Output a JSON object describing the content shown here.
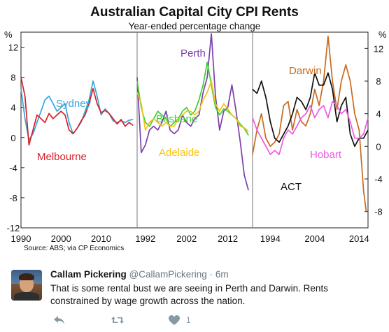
{
  "chart_data": {
    "type": "line",
    "title": "Australian Capital City CPI Rents",
    "subtitle": "Year-ended percentage change",
    "source": "Source: ABS; via CP Economics",
    "ylabel_left": "%",
    "ylabel_right": "%",
    "yticks_left": [
      "12",
      "8",
      "4",
      "0",
      "-4",
      "-8",
      "-12"
    ],
    "yticks_right": [
      "12",
      "8",
      "4",
      "0",
      "-4",
      "-8"
    ],
    "colors": {
      "Sydney": "#35a7db",
      "Melbourne": "#d6212a",
      "Perth": "#7d3fa8",
      "Brisbane": "#39d12f",
      "Adelaide": "#f5c313",
      "Darwin": "#c86a1e",
      "ACT": "#111111",
      "Hobart": "#ef59e6"
    },
    "panels": [
      {
        "xticks": [
          "1990",
          "2000",
          "2010"
        ],
        "xlim": [
          1990,
          2019
        ],
        "ylim": [
          -12,
          14
        ],
        "series": [
          {
            "name": "Sydney",
            "label": "Sydney",
            "data": [
              [
                1990,
                6.5
              ],
              [
                1991,
                2.5
              ],
              [
                1992,
                -0.3
              ],
              [
                1993,
                0.5
              ],
              [
                1994,
                2
              ],
              [
                1995,
                3.5
              ],
              [
                1996,
                5
              ],
              [
                1997,
                5.5
              ],
              [
                1998,
                4.5
              ],
              [
                1999,
                3.5
              ],
              [
                2000,
                4
              ],
              [
                2001,
                4.5
              ],
              [
                2002,
                2
              ],
              [
                2003,
                0.5
              ],
              [
                2004,
                1.2
              ],
              [
                2005,
                2
              ],
              [
                2006,
                3.5
              ],
              [
                2007,
                5
              ],
              [
                2008,
                7.5
              ],
              [
                2009,
                5.5
              ],
              [
                2010,
                3
              ],
              [
                2011,
                3.8
              ],
              [
                2012,
                3.2
              ],
              [
                2013,
                2.2
              ],
              [
                2014,
                2
              ],
              [
                2015,
                2.2
              ],
              [
                2016,
                2
              ],
              [
                2017,
                2.3
              ],
              [
                2018,
                2.4
              ]
            ]
          },
          {
            "name": "Melbourne",
            "label": "Melbourne",
            "data": [
              [
                1990,
                8
              ],
              [
                1991,
                5.5
              ],
              [
                1992,
                -1
              ],
              [
                1993,
                1
              ],
              [
                1994,
                3
              ],
              [
                1995,
                2.5
              ],
              [
                1996,
                2
              ],
              [
                1997,
                3.2
              ],
              [
                1998,
                2.5
              ],
              [
                1999,
                3
              ],
              [
                2000,
                3.5
              ],
              [
                2001,
                3
              ],
              [
                2002,
                1
              ],
              [
                2003,
                0.5
              ],
              [
                2004,
                1.2
              ],
              [
                2005,
                2.2
              ],
              [
                2006,
                3
              ],
              [
                2007,
                4.5
              ],
              [
                2008,
                6.5
              ],
              [
                2009,
                4.5
              ],
              [
                2010,
                3.3
              ],
              [
                2011,
                3.6
              ],
              [
                2012,
                3.2
              ],
              [
                2013,
                2.5
              ],
              [
                2014,
                1.8
              ],
              [
                2015,
                2.4
              ],
              [
                2016,
                1.5
              ],
              [
                2017,
                2
              ],
              [
                2018,
                1.6
              ]
            ]
          }
        ]
      },
      {
        "xticks": [
          "1992",
          "2002",
          "2012"
        ],
        "xlim": [
          1990,
          2018
        ],
        "ylim": [
          -12,
          14
        ],
        "series": [
          {
            "name": "Perth",
            "label": "Perth",
            "data": [
              [
                1990,
                8
              ],
              [
                1991,
                -2
              ],
              [
                1992,
                -1
              ],
              [
                1993,
                1
              ],
              [
                1994,
                1.5
              ],
              [
                1995,
                1
              ],
              [
                1996,
                2
              ],
              [
                1997,
                3.5
              ],
              [
                1998,
                1
              ],
              [
                1999,
                0.5
              ],
              [
                2000,
                1
              ],
              [
                2001,
                3
              ],
              [
                2002,
                2
              ],
              [
                2003,
                1.5
              ],
              [
                2004,
                2.5
              ],
              [
                2005,
                3
              ],
              [
                2006,
                6
              ],
              [
                2007,
                8
              ],
              [
                2008,
                13.8
              ],
              [
                2009,
                5.5
              ],
              [
                2010,
                1
              ],
              [
                2011,
                3.5
              ],
              [
                2012,
                4
              ],
              [
                2013,
                7
              ],
              [
                2014,
                3.5
              ],
              [
                2015,
                -0.5
              ],
              [
                2016,
                -5
              ],
              [
                2017,
                -7
              ]
            ]
          },
          {
            "name": "Brisbane",
            "label": "Brisbane",
            "data": [
              [
                1990,
                7.5
              ],
              [
                1991,
                4
              ],
              [
                1992,
                2
              ],
              [
                1993,
                1.5
              ],
              [
                1994,
                2.5
              ],
              [
                1995,
                3.5
              ],
              [
                1996,
                3
              ],
              [
                1997,
                2.5
              ],
              [
                1998,
                1.5
              ],
              [
                1999,
                2
              ],
              [
                2000,
                2.5
              ],
              [
                2001,
                3.5
              ],
              [
                2002,
                4
              ],
              [
                2003,
                3
              ],
              [
                2004,
                3.5
              ],
              [
                2005,
                5
              ],
              [
                2006,
                7
              ],
              [
                2007,
                10
              ],
              [
                2008,
                7
              ],
              [
                2009,
                4
              ],
              [
                2010,
                3
              ],
              [
                2011,
                3.8
              ],
              [
                2012,
                3.5
              ],
              [
                2013,
                3
              ],
              [
                2014,
                2.5
              ],
              [
                2015,
                1.8
              ],
              [
                2016,
                1.2
              ],
              [
                2017,
                0.3
              ]
            ]
          },
          {
            "name": "Adelaide",
            "label": "Adelaide",
            "data": [
              [
                1990,
                6
              ],
              [
                1991,
                4.5
              ],
              [
                1992,
                1
              ],
              [
                1993,
                2
              ],
              [
                1994,
                2.5
              ],
              [
                1995,
                2
              ],
              [
                1996,
                1.5
              ],
              [
                1997,
                2
              ],
              [
                1998,
                1.5
              ],
              [
                1999,
                1.5
              ],
              [
                2000,
                2.5
              ],
              [
                2001,
                3
              ],
              [
                2002,
                3.5
              ],
              [
                2003,
                3.5
              ],
              [
                2004,
                3
              ],
              [
                2005,
                3.5
              ],
              [
                2006,
                5
              ],
              [
                2007,
                6
              ],
              [
                2008,
                7.5
              ],
              [
                2009,
                4.5
              ],
              [
                2010,
                3.5
              ],
              [
                2011,
                4.5
              ],
              [
                2012,
                3.8
              ],
              [
                2013,
                3
              ],
              [
                2014,
                2.5
              ],
              [
                2015,
                1.5
              ],
              [
                2016,
                1.3
              ],
              [
                2017,
                0.8
              ]
            ]
          }
        ]
      },
      {
        "xticks": [
          "1994",
          "2004",
          "2014"
        ],
        "xlim": [
          1990,
          2016
        ],
        "ylim": [
          -10,
          14
        ],
        "series": [
          {
            "name": "Darwin",
            "label": "Darwin",
            "data": [
              [
                1990,
                -1
              ],
              [
                1991,
                2
              ],
              [
                1992,
                4
              ],
              [
                1993,
                1
              ],
              [
                1994,
                0
              ],
              [
                1995,
                0.5
              ],
              [
                1996,
                1.5
              ],
              [
                1997,
                5
              ],
              [
                1998,
                5.5
              ],
              [
                1999,
                2
              ],
              [
                2000,
                4.5
              ],
              [
                2001,
                3
              ],
              [
                2002,
                2.5
              ],
              [
                2003,
                4
              ],
              [
                2004,
                7
              ],
              [
                2005,
                5
              ],
              [
                2006,
                8
              ],
              [
                2007,
                13.5
              ],
              [
                2008,
                8
              ],
              [
                2009,
                4.5
              ],
              [
                2010,
                8
              ],
              [
                2011,
                10
              ],
              [
                2012,
                8
              ],
              [
                2013,
                4
              ],
              [
                2014,
                2
              ],
              [
                2015,
                -5.5
              ],
              [
                2015.6,
                -8
              ]
            ]
          },
          {
            "name": "ACT",
            "label": "ACT",
            "data": [
              [
                1990,
                7
              ],
              [
                1991,
                6.5
              ],
              [
                1992,
                8
              ],
              [
                1993,
                6
              ],
              [
                1994,
                3
              ],
              [
                1995,
                1
              ],
              [
                1996,
                0.5
              ],
              [
                1997,
                1.5
              ],
              [
                1998,
                2.5
              ],
              [
                1999,
                4
              ],
              [
                2000,
                6
              ],
              [
                2001,
                5.5
              ],
              [
                2002,
                4.5
              ],
              [
                2003,
                6
              ],
              [
                2004,
                9
              ],
              [
                2005,
                7.5
              ],
              [
                2006,
                7.5
              ],
              [
                2007,
                9
              ],
              [
                2008,
                7
              ],
              [
                2009,
                3
              ],
              [
                2010,
                5
              ],
              [
                2011,
                6
              ],
              [
                2012,
                1.5
              ],
              [
                2013,
                0
              ],
              [
                2014,
                1
              ],
              [
                2015,
                1
              ],
              [
                2016,
                2
              ]
            ]
          },
          {
            "name": "Hobart",
            "label": "Hobart",
            "data": [
              [
                1990,
                3.5
              ],
              [
                1991,
                2
              ],
              [
                1992,
                1
              ],
              [
                1993,
                0
              ],
              [
                1994,
                -1
              ],
              [
                1995,
                -0.5
              ],
              [
                1996,
                -1
              ],
              [
                1997,
                1
              ],
              [
                1998,
                2
              ],
              [
                1999,
                1.5
              ],
              [
                2000,
                2.5
              ],
              [
                2001,
                3.5
              ],
              [
                2002,
                4
              ],
              [
                2003,
                5
              ],
              [
                2004,
                3.5
              ],
              [
                2005,
                4.5
              ],
              [
                2006,
                5
              ],
              [
                2007,
                3.5
              ],
              [
                2008,
                5.5
              ],
              [
                2009,
                5
              ],
              [
                2010,
                4
              ],
              [
                2011,
                4.5
              ],
              [
                2012,
                3
              ],
              [
                2013,
                1
              ],
              [
                2014,
                1
              ],
              [
                2015,
                1.5
              ],
              [
                2016,
                3.5
              ]
            ]
          }
        ]
      }
    ]
  },
  "tweet": {
    "name": "Callam Pickering",
    "handle": "@CallamPickering",
    "time": "· 6m",
    "text": "That is some rental bust we are seeing in Perth and Darwin. Rents constrained by wage growth across the nation.",
    "likes": "1",
    "icons": [
      "reply-icon",
      "retweet-icon",
      "like-icon"
    ]
  }
}
